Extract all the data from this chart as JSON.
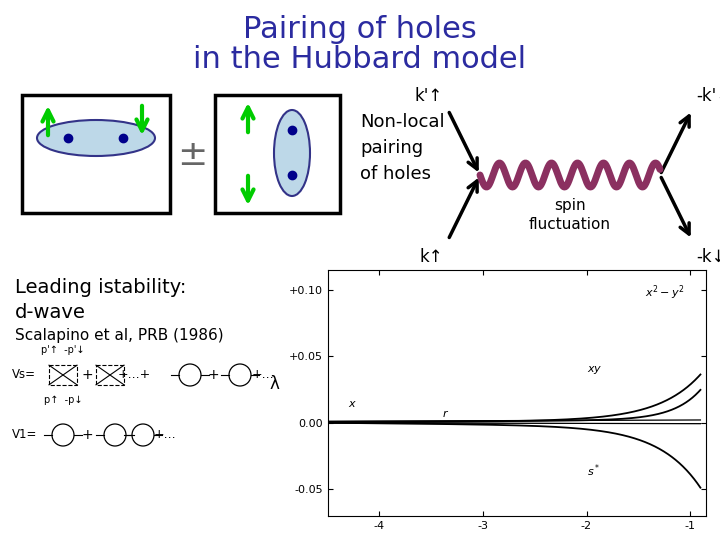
{
  "title_line1": "Pairing of holes",
  "title_line2": "in the Hubbard model",
  "title_color": "#2B2BA0",
  "title_fontsize": 22,
  "bg_color": "#FFFFFF",
  "nonlocal_text": "Non-local\npairing\nof holes",
  "leading_line1": "Leading istability:",
  "leading_line2": "d-wave",
  "leading_line3": "Scalapino et al, PRB (1986)",
  "spin_text": "spin\nfluctuation",
  "wavy_color": "#8B3060",
  "green_color": "#00CC00",
  "ellipse_face": "#BDD8E8",
  "ellipse_edge": "#333388",
  "dot_color": "#00008B",
  "feynman_bottom_left_image": true,
  "graph_xlim": [
    -4.5,
    -0.85
  ],
  "graph_ylim": [
    -0.07,
    0.115
  ],
  "graph_xticks": [
    -4,
    -3,
    -2,
    -1
  ],
  "graph_yticks": [
    -0.05,
    0.0,
    0.05,
    0.1
  ],
  "graph_yticklabels": [
    "-0.05",
    "0.00",
    "+0.05",
    "+0.10"
  ]
}
